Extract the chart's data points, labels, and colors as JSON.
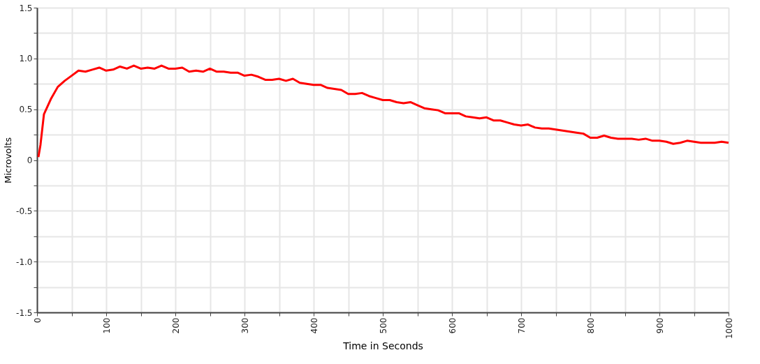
{
  "chart_data": {
    "type": "line",
    "xlabel": "Time in Seconds",
    "ylabel": "Microvolts",
    "x": [
      2,
      5,
      10,
      20,
      30,
      40,
      50,
      60,
      70,
      80,
      90,
      100,
      110,
      120,
      130,
      140,
      150,
      160,
      170,
      180,
      190,
      200,
      210,
      220,
      230,
      240,
      250,
      260,
      270,
      280,
      290,
      300,
      310,
      320,
      330,
      340,
      350,
      360,
      370,
      380,
      390,
      400,
      410,
      420,
      430,
      440,
      450,
      460,
      470,
      480,
      490,
      500,
      510,
      520,
      530,
      540,
      550,
      560,
      570,
      580,
      590,
      600,
      610,
      620,
      630,
      640,
      650,
      660,
      670,
      680,
      690,
      700,
      710,
      720,
      730,
      740,
      750,
      760,
      770,
      780,
      790,
      800,
      810,
      820,
      830,
      840,
      850,
      860,
      870,
      880,
      890,
      900,
      910,
      920,
      930,
      940,
      950,
      960,
      970,
      980,
      990,
      1000
    ],
    "series": [
      {
        "color": "#ff0000",
        "values": [
          0.03,
          0.15,
          0.45,
          0.6,
          0.72,
          0.78,
          0.83,
          0.88,
          0.87,
          0.89,
          0.91,
          0.88,
          0.89,
          0.92,
          0.9,
          0.93,
          0.9,
          0.91,
          0.9,
          0.93,
          0.9,
          0.9,
          0.91,
          0.87,
          0.88,
          0.87,
          0.9,
          0.87,
          0.87,
          0.86,
          0.86,
          0.83,
          0.84,
          0.82,
          0.79,
          0.79,
          0.8,
          0.78,
          0.8,
          0.76,
          0.75,
          0.74,
          0.74,
          0.71,
          0.7,
          0.69,
          0.65,
          0.65,
          0.66,
          0.63,
          0.61,
          0.59,
          0.59,
          0.57,
          0.56,
          0.57,
          0.54,
          0.51,
          0.5,
          0.49,
          0.46,
          0.46,
          0.46,
          0.43,
          0.42,
          0.41,
          0.42,
          0.39,
          0.39,
          0.37,
          0.35,
          0.34,
          0.35,
          0.32,
          0.31,
          0.31,
          0.3,
          0.29,
          0.28,
          0.27,
          0.26,
          0.22,
          0.22,
          0.24,
          0.22,
          0.21,
          0.21,
          0.21,
          0.2,
          0.21,
          0.19,
          0.19,
          0.18,
          0.16,
          0.17,
          0.19,
          0.18,
          0.17,
          0.17,
          0.17,
          0.18,
          0.17
        ]
      }
    ],
    "xlim": [
      0,
      1000
    ],
    "xticks": [
      0,
      {
        "value": 50,
        "label": null
      },
      100,
      {
        "value": 150,
        "label": null
      },
      200,
      {
        "value": 250,
        "label": null
      },
      300,
      {
        "value": 350,
        "label": null
      },
      400,
      {
        "value": 450,
        "label": null
      },
      500,
      {
        "value": 550,
        "label": null
      },
      600,
      {
        "value": 650,
        "label": null
      },
      700,
      {
        "value": 750,
        "label": null
      },
      800,
      {
        "value": 850,
        "label": null
      },
      900,
      {
        "value": 950,
        "label": null
      },
      1000
    ],
    "ylim": [
      -1.5,
      1.5
    ],
    "yticks": [
      {
        "value": -1.5,
        "label": "-1.5"
      },
      {
        "value": -1.25,
        "label": null
      },
      {
        "value": -1.0,
        "label": "-1.0"
      },
      {
        "value": -0.75,
        "label": null
      },
      {
        "value": -0.5,
        "label": "-0.5"
      },
      {
        "value": -0.25,
        "label": null
      },
      0,
      {
        "value": 0.25,
        "label": null
      },
      {
        "value": 0.5,
        "label": "0.5"
      },
      {
        "value": 0.75,
        "label": null
      },
      {
        "value": 1.0,
        "label": "1.0"
      },
      {
        "value": 1.25,
        "label": null
      },
      {
        "value": 1.5,
        "label": "1.5"
      }
    ],
    "grid": true,
    "line_style": "solid"
  }
}
